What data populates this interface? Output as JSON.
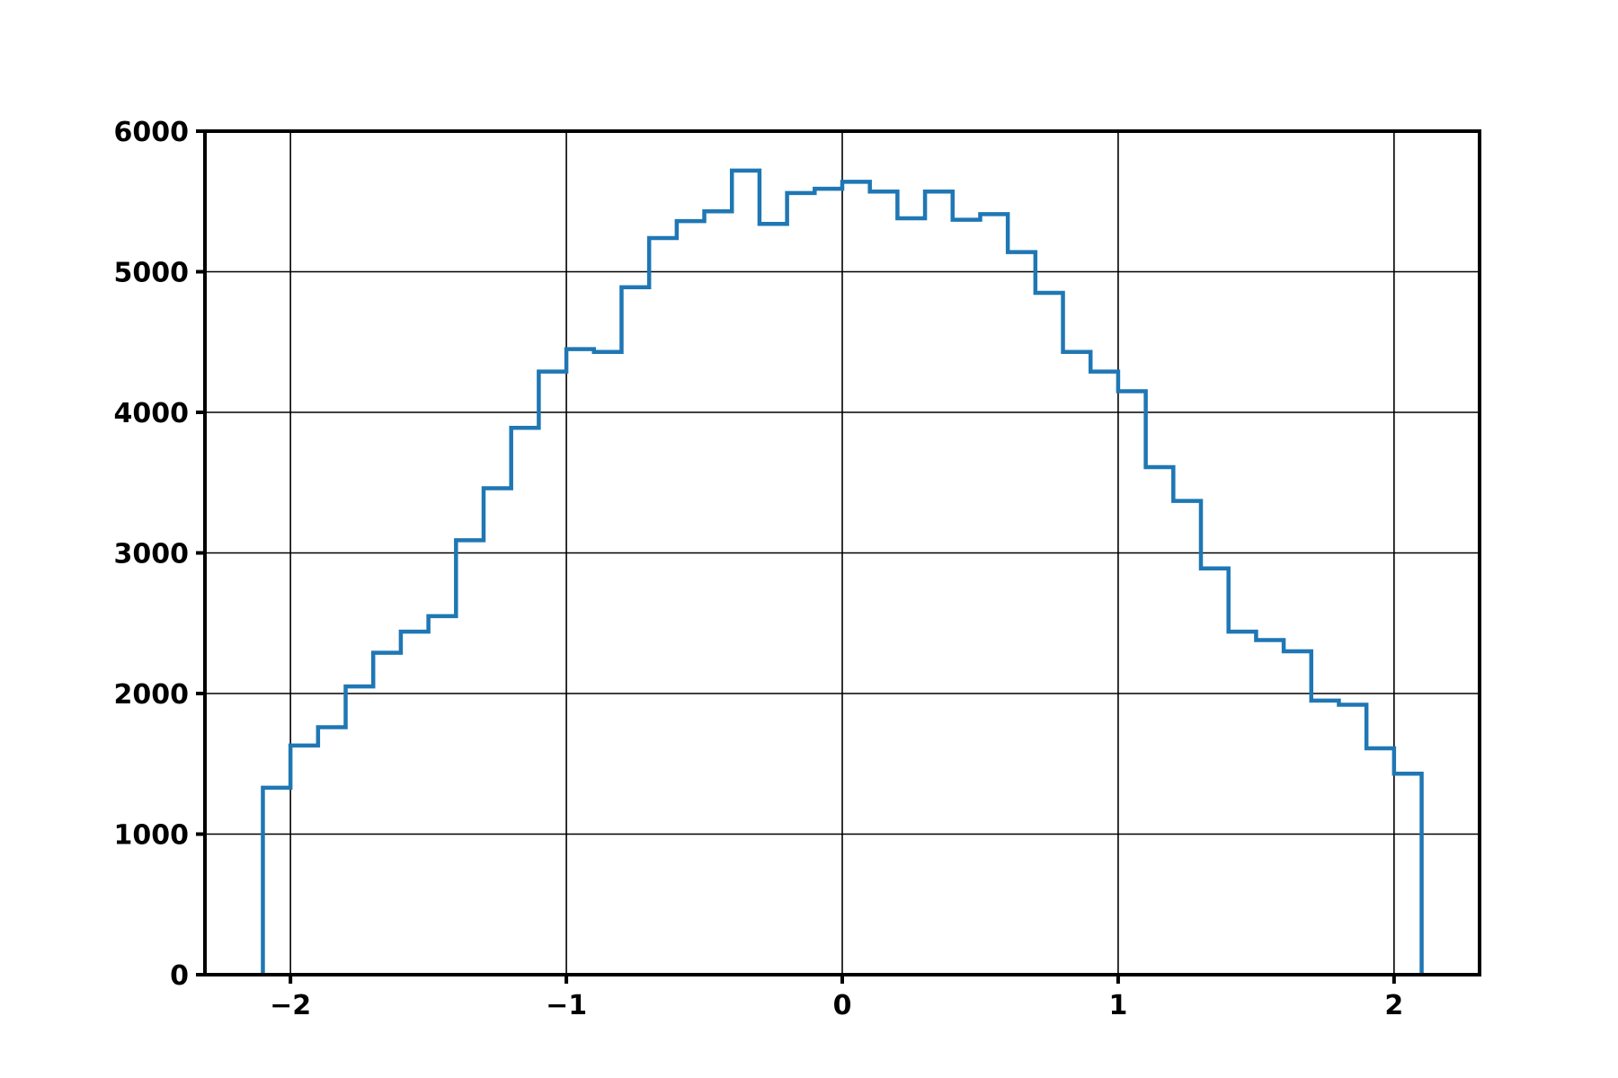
{
  "chart_data": {
    "type": "histogram-step",
    "bin_edges": [
      -2.1,
      -2.0,
      -1.9,
      -1.8,
      -1.7,
      -1.6,
      -1.5,
      -1.4,
      -1.3,
      -1.2,
      -1.1,
      -1.0,
      -0.9,
      -0.8,
      -0.7,
      -0.6,
      -0.5,
      -0.4,
      -0.3,
      -0.2,
      -0.1,
      0.0,
      0.1,
      0.2,
      0.3,
      0.4,
      0.5,
      0.6,
      0.7,
      0.8,
      0.9,
      1.0,
      1.1,
      1.2,
      1.3,
      1.4,
      1.5,
      1.6,
      1.7,
      1.8,
      1.9,
      2.0,
      2.1
    ],
    "counts": [
      1330,
      1630,
      1760,
      2050,
      2290,
      2440,
      2550,
      3090,
      3460,
      3890,
      4290,
      4450,
      4430,
      4890,
      5240,
      5360,
      5430,
      5720,
      5340,
      5560,
      5590,
      5640,
      5570,
      5380,
      5570,
      5370,
      5410,
      5140,
      4850,
      4430,
      4290,
      4150,
      3610,
      3370,
      2890,
      2440,
      2380,
      2300,
      1950,
      1920,
      1610,
      1430
    ],
    "xlim": [
      -2.31,
      2.31
    ],
    "ylim": [
      0,
      6000
    ],
    "xticks": [
      -2,
      -1,
      0,
      1,
      2
    ],
    "xtick_labels": [
      "−2",
      "−1",
      "0",
      "1",
      "2"
    ],
    "yticks": [
      0,
      1000,
      2000,
      3000,
      4000,
      5000,
      6000
    ],
    "ytick_labels": [
      "0",
      "1000",
      "2000",
      "3000",
      "4000",
      "5000",
      "6000"
    ],
    "grid": true,
    "color": "#1f77b4",
    "title": "",
    "xlabel": "",
    "ylabel": ""
  }
}
